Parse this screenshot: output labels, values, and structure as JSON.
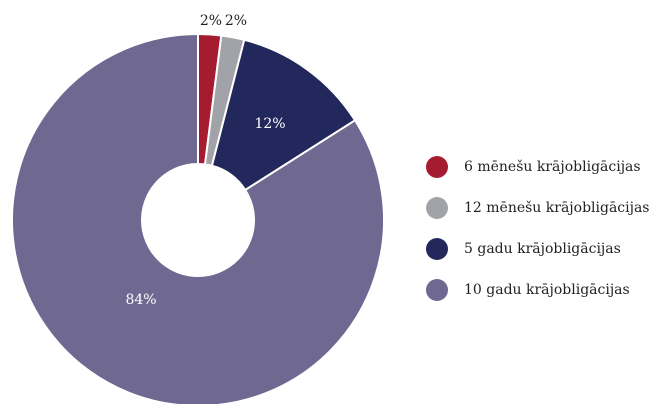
{
  "chart_data": {
    "type": "pie",
    "donut": true,
    "title": "",
    "categories": [
      "6 mēnešu krājobligācijas",
      "12 mēnešu krājobligācijas",
      "5 gadu krājobligācijas",
      "10 gadu krājobligācijas"
    ],
    "values": [
      2,
      2,
      12,
      84
    ],
    "labels": [
      "2%",
      "2%",
      "12%",
      "84%"
    ],
    "colors": [
      "#a51c30",
      "#a2a3a8",
      "#23285c",
      "#6f6890"
    ],
    "legend_position": "right"
  }
}
